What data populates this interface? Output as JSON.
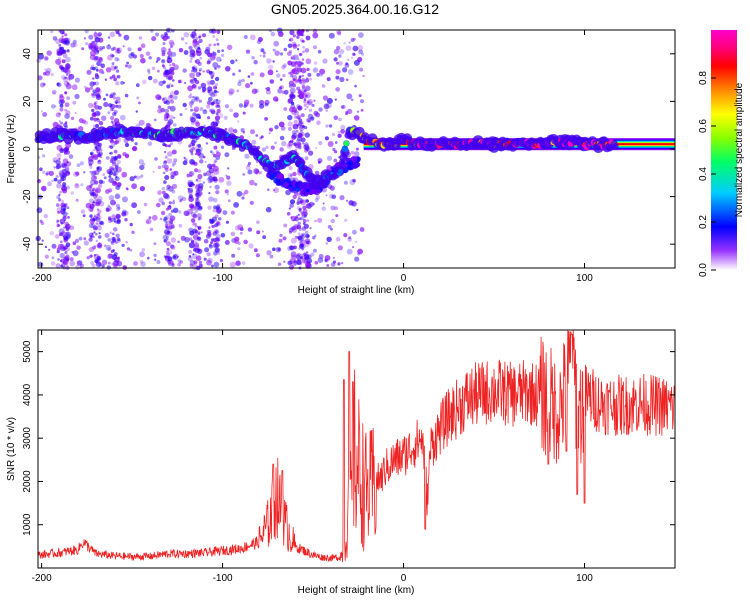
{
  "figure_title": "GN05.2025.364.00.16.G12",
  "chart_data": [
    {
      "type": "heatmap",
      "title": "GN05.2025.364.00.16.G12",
      "xlabel": "Height of straight line (km)",
      "ylabel": "Frequency (Hz)",
      "xlim": [
        -202,
        150
      ],
      "ylim": [
        -50,
        50
      ],
      "xticks": [
        -200,
        -100,
        0,
        100
      ],
      "xtick_labels": [
        "-200",
        "-100",
        "0",
        "100"
      ],
      "yticks": [
        -40,
        -20,
        0,
        20,
        40
      ],
      "ytick_labels": [
        "-40",
        "-20",
        "0",
        "20",
        "40"
      ],
      "colorbar": {
        "label": "Normalized spectral amplitude",
        "range": [
          0,
          1
        ],
        "ticks": [
          0,
          0.2,
          0.4,
          0.6,
          0.8
        ],
        "tick_labels": [
          "0.0",
          "0.2",
          "0.4",
          "0.6",
          "0.8"
        ],
        "colormap": [
          "#ffffff",
          "#8800ff",
          "#0000ff",
          "#00ccff",
          "#00ff66",
          "#88ff00",
          "#ffff00",
          "#ff8800",
          "#ff0000",
          "#ff0080",
          "#ff00cc"
        ]
      },
      "ridge": {
        "x": [
          -202,
          -190,
          -180,
          -170,
          -160,
          -150,
          -140,
          -130,
          -120,
          -110,
          -100,
          -95,
          -90,
          -85,
          -80,
          -75,
          -70,
          -65,
          -60,
          -55,
          -50,
          -45,
          -40,
          -35,
          -30,
          -25,
          -20,
          -15,
          -10,
          -5,
          0,
          5,
          10,
          20,
          30,
          40,
          50,
          60,
          70,
          75,
          80,
          85,
          90,
          95,
          100,
          105,
          110,
          118
        ],
        "freq": [
          5,
          6,
          5,
          6,
          7,
          7,
          6,
          6,
          7,
          7,
          6,
          4,
          2,
          0,
          -3,
          -6,
          -7,
          -5,
          -3,
          -9,
          -14,
          -13,
          -11,
          -10,
          8,
          6,
          4,
          3,
          2,
          2,
          4,
          2,
          2,
          2,
          2,
          2,
          2,
          2,
          2,
          2,
          3,
          3,
          3,
          3,
          2,
          2,
          2,
          2
        ],
        "amplitude": [
          0.2,
          0.3,
          0.25,
          0.25,
          0.3,
          0.35,
          0.35,
          0.4,
          0.4,
          0.4,
          0.35,
          0.3,
          0.3,
          0.25,
          0.3,
          0.3,
          0.3,
          0.25,
          0.3,
          0.25,
          0.3,
          0.3,
          0.25,
          0.2,
          0.4,
          0.5,
          0.6,
          0.7,
          0.8,
          0.8,
          0.9,
          0.85,
          0.9,
          0.95,
          0.95,
          0.95,
          0.95,
          0.95,
          0.95,
          0.9,
          0.9,
          0.85,
          0.9,
          0.9,
          0.95,
          0.95,
          0.95,
          0.95
        ]
      },
      "secondary_ridge": {
        "x": [
          -75,
          -70,
          -65,
          -60,
          -55,
          -50,
          -45,
          -40,
          -35,
          -30,
          -25
        ],
        "freq": [
          -9,
          -12,
          -14,
          -16,
          -17,
          -17,
          -15,
          -10,
          -8,
          -6,
          -5
        ]
      },
      "flat_band": {
        "x_start": -22,
        "x_end": 150,
        "freq": 2
      }
    },
    {
      "type": "line",
      "xlabel": "Height of straight line (km)",
      "ylabel": "SNR (10 * v/v)",
      "xlim": [
        -202,
        150
      ],
      "ylim": [
        0,
        5500
      ],
      "xticks": [
        -200,
        -100,
        0,
        100
      ],
      "xtick_labels": [
        "-200",
        "-100",
        "0",
        "100"
      ],
      "yticks": [
        1000,
        2000,
        3000,
        4000,
        5000
      ],
      "ytick_labels": [
        "1000",
        "2000",
        "3000",
        "4000",
        "5000"
      ],
      "color": "#ee2222",
      "series": [
        {
          "name": "SNR",
          "x": [
            -202,
            -190,
            -180,
            -177,
            -170,
            -160,
            -150,
            -140,
            -130,
            -120,
            -110,
            -100,
            -90,
            -80,
            -75,
            -72,
            -70,
            -67,
            -65,
            -62,
            -60,
            -55,
            -50,
            -45,
            -40,
            -35,
            -33,
            -30,
            -28,
            -27,
            -25,
            -22,
            -20,
            -18,
            -15,
            -12,
            -10,
            -5,
            0,
            5,
            10,
            12,
            13,
            15,
            20,
            25,
            30,
            35,
            40,
            45,
            50,
            55,
            60,
            65,
            70,
            75,
            80,
            85,
            90,
            93,
            95,
            98,
            100,
            105,
            110,
            120,
            130,
            140,
            150
          ],
          "y": [
            300,
            350,
            420,
            600,
            330,
            280,
            260,
            270,
            330,
            330,
            350,
            400,
            450,
            600,
            1000,
            1400,
            1700,
            1200,
            1000,
            700,
            500,
            400,
            300,
            250,
            230,
            250,
            350,
            1400,
            2000,
            2600,
            2300,
            1900,
            1700,
            1800,
            2000,
            2100,
            2300,
            2500,
            2600,
            2800,
            3000,
            2500,
            1500,
            2800,
            3200,
            3500,
            3700,
            3900,
            4000,
            4050,
            4100,
            4050,
            4000,
            4050,
            4050,
            4000,
            3900,
            3600,
            4100,
            4800,
            4200,
            3600,
            4000,
            3900,
            3800,
            3750,
            3800,
            3750,
            3700
          ],
          "spikes": [
            {
              "x": -72,
              "y": 2400
            },
            {
              "x": -67,
              "y": 2250
            },
            {
              "x": -33,
              "y": 4350
            },
            {
              "x": -30,
              "y": 5000
            },
            {
              "x": -28,
              "y": 4300
            },
            {
              "x": 12,
              "y": 900
            },
            {
              "x": 80,
              "y": 2400
            },
            {
              "x": 90,
              "y": 2700
            },
            {
              "x": 93,
              "y": 5400
            },
            {
              "x": 96,
              "y": 1700
            },
            {
              "x": 100,
              "y": 1500
            }
          ]
        }
      ]
    }
  ]
}
